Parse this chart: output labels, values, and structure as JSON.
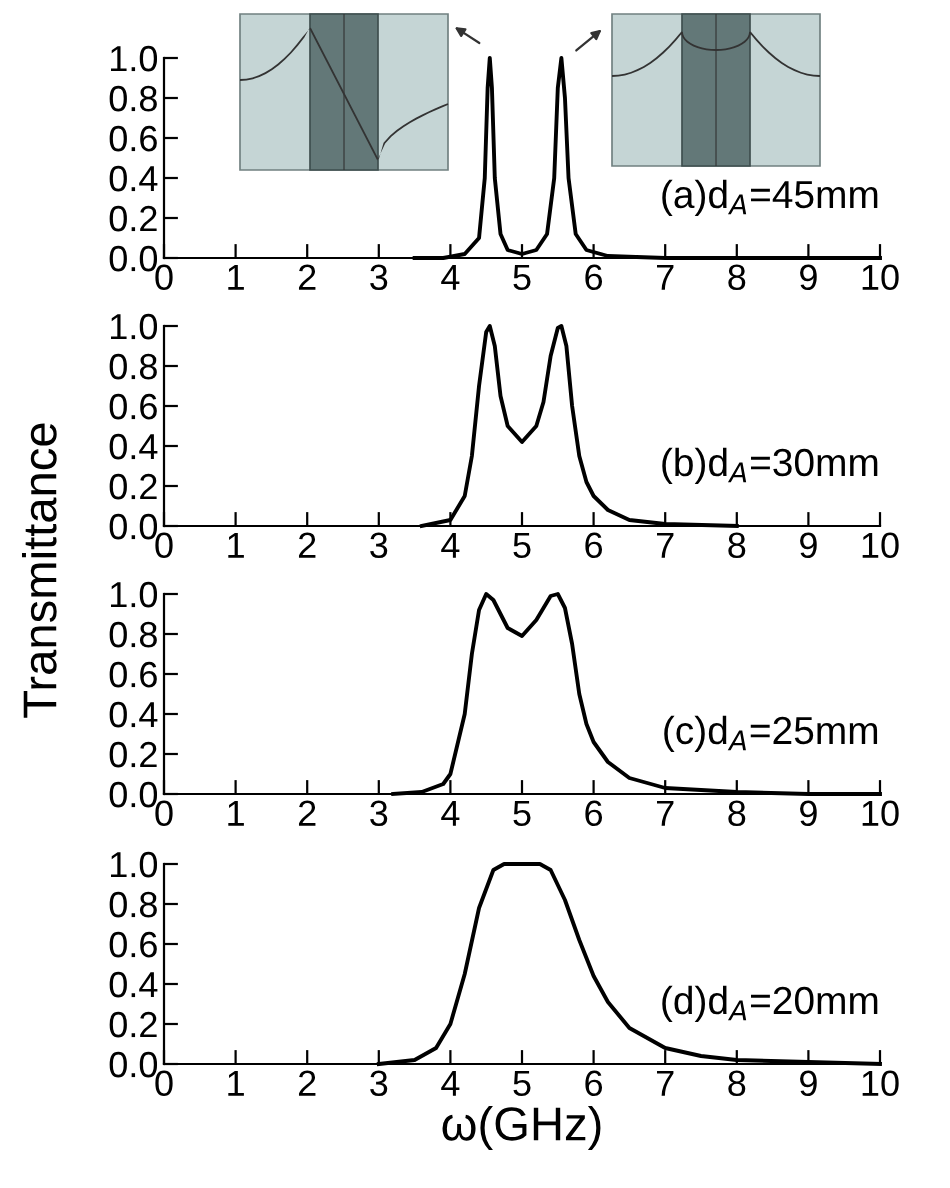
{
  "chart_data": [
    {
      "type": "line",
      "annotations": [
        "(a)d$_{A}$=45mm"
      ],
      "xlim": [
        0,
        10
      ],
      "xticks": [
        0,
        1,
        2,
        3,
        4,
        5,
        6,
        7,
        8,
        9,
        10
      ],
      "ylim": [
        0,
        1.0
      ],
      "yticks": [
        {
          "value": 0,
          "label": "0.0"
        },
        {
          "value": 0.2,
          "label": "0.2"
        },
        {
          "value": 0.4,
          "label": "0.4"
        },
        {
          "value": 0.6,
          "label": "0.6"
        },
        {
          "value": 0.8,
          "label": "0.8"
        },
        {
          "value": 1.0,
          "label": "1.0"
        }
      ],
      "grid": false,
      "line_style": "solid",
      "marker": "none",
      "series": [
        {
          "color": "#000000",
          "x": [
            3.5,
            3.9,
            4.2,
            4.4,
            4.48,
            4.52,
            4.55,
            4.58,
            4.62,
            4.7,
            4.8,
            5.0,
            5.2,
            5.35,
            5.45,
            5.5,
            5.55,
            5.6,
            5.65,
            5.75,
            5.9,
            6.2,
            7,
            8,
            10
          ],
          "values": [
            0,
            0.0,
            0.02,
            0.1,
            0.4,
            0.85,
            1.0,
            0.85,
            0.4,
            0.12,
            0.04,
            0.02,
            0.04,
            0.12,
            0.4,
            0.85,
            1.0,
            0.8,
            0.4,
            0.12,
            0.04,
            0.01,
            0.0,
            0,
            0
          ]
        }
      ]
    },
    {
      "type": "line",
      "annotations": [
        "(b)d$_{A}$=30mm"
      ],
      "ylabel": "Transmittance",
      "xlim": [
        0,
        10
      ],
      "xticks": [
        0,
        1,
        2,
        3,
        4,
        5,
        6,
        7,
        8,
        9,
        10
      ],
      "ylim": [
        0,
        1.0
      ],
      "yticks": [
        {
          "value": 0,
          "label": "0.0"
        },
        {
          "value": 0.2,
          "label": "0.2"
        },
        {
          "value": 0.4,
          "label": "0.4"
        },
        {
          "value": 0.6,
          "label": "0.6"
        },
        {
          "value": 0.8,
          "label": "0.8"
        },
        {
          "value": 1.0,
          "label": "1.0"
        }
      ],
      "grid": false,
      "line_style": "solid",
      "marker": "none",
      "series": [
        {
          "color": "#000000",
          "x": [
            3.6,
            4.0,
            4.2,
            4.3,
            4.4,
            4.5,
            4.55,
            4.62,
            4.7,
            4.8,
            5.0,
            5.2,
            5.3,
            5.4,
            5.5,
            5.55,
            5.62,
            5.7,
            5.8,
            5.9,
            6.0,
            6.2,
            6.5,
            7,
            8
          ],
          "values": [
            0,
            0.03,
            0.15,
            0.35,
            0.7,
            0.97,
            1.0,
            0.9,
            0.65,
            0.5,
            0.42,
            0.5,
            0.62,
            0.85,
            0.99,
            1.0,
            0.9,
            0.6,
            0.35,
            0.22,
            0.15,
            0.08,
            0.03,
            0.01,
            0.0
          ]
        }
      ]
    },
    {
      "type": "line",
      "annotations": [
        "(c)d$_{A}$=25mm"
      ],
      "xlim": [
        0,
        10
      ],
      "xticks": [
        0,
        1,
        2,
        3,
        4,
        5,
        6,
        7,
        8,
        9,
        10
      ],
      "ylim": [
        0,
        1.0
      ],
      "yticks": [
        {
          "value": 0,
          "label": "0.0"
        },
        {
          "value": 0.2,
          "label": "0.2"
        },
        {
          "value": 0.4,
          "label": "0.4"
        },
        {
          "value": 0.6,
          "label": "0.6"
        },
        {
          "value": 0.8,
          "label": "0.8"
        },
        {
          "value": 1.0,
          "label": "1.0"
        }
      ],
      "grid": false,
      "line_style": "solid",
      "marker": "none",
      "series": [
        {
          "color": "#000000",
          "x": [
            3.2,
            3.6,
            3.9,
            4.0,
            4.2,
            4.3,
            4.4,
            4.5,
            4.6,
            4.8,
            5.0,
            5.2,
            5.4,
            5.5,
            5.6,
            5.7,
            5.8,
            5.9,
            6.0,
            6.2,
            6.5,
            7,
            8,
            9,
            10
          ],
          "values": [
            0,
            0.01,
            0.05,
            0.1,
            0.4,
            0.7,
            0.92,
            1.0,
            0.97,
            0.83,
            0.79,
            0.87,
            0.99,
            1.0,
            0.93,
            0.75,
            0.5,
            0.35,
            0.26,
            0.16,
            0.08,
            0.03,
            0.01,
            0.0,
            0.0
          ]
        }
      ]
    },
    {
      "type": "line",
      "annotations": [
        "(d)d$_{A}$=20mm"
      ],
      "xlabel": "ω(GHz)",
      "xlim": [
        0,
        10
      ],
      "xticks": [
        0,
        1,
        2,
        3,
        4,
        5,
        6,
        7,
        8,
        9,
        10
      ],
      "ylim": [
        0,
        1.0
      ],
      "yticks": [
        {
          "value": 0,
          "label": "0.0"
        },
        {
          "value": 0.2,
          "label": "0.2"
        },
        {
          "value": 0.4,
          "label": "0.4"
        },
        {
          "value": 0.6,
          "label": "0.6"
        },
        {
          "value": 0.8,
          "label": "0.8"
        },
        {
          "value": 1.0,
          "label": "1.0"
        }
      ],
      "grid": false,
      "line_style": "solid",
      "marker": "none",
      "series": [
        {
          "color": "#000000",
          "x": [
            3.0,
            3.5,
            3.8,
            4.0,
            4.2,
            4.4,
            4.6,
            4.75,
            5.25,
            5.4,
            5.6,
            5.8,
            6.0,
            6.2,
            6.5,
            7.0,
            7.5,
            8,
            9,
            10
          ],
          "values": [
            0,
            0.02,
            0.08,
            0.2,
            0.45,
            0.78,
            0.97,
            1.0,
            1.0,
            0.97,
            0.82,
            0.62,
            0.44,
            0.31,
            0.18,
            0.08,
            0.04,
            0.02,
            0.01,
            0.0
          ]
        }
      ]
    }
  ]
}
